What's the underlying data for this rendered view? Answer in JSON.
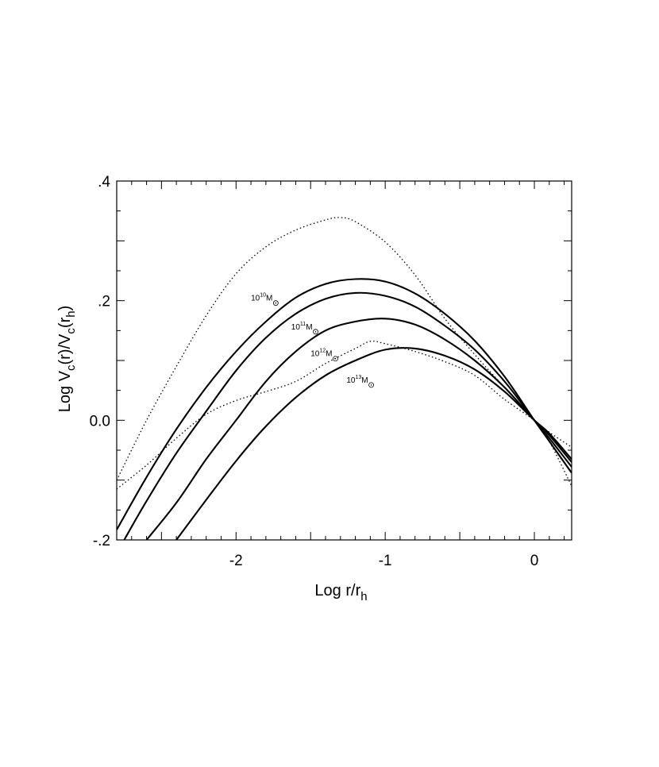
{
  "chart_data": {
    "type": "line",
    "title": "",
    "xlabel": {
      "main": "Log  r/r",
      "sub": "h"
    },
    "ylabel": {
      "parts": [
        {
          "t": "Log  V",
          "sub": false
        },
        {
          "t": "c",
          "sub": true
        },
        {
          "t": "(r)/V",
          "sub": false
        },
        {
          "t": "c",
          "sub": true
        },
        {
          "t": "(r",
          "sub": false
        },
        {
          "t": "h",
          "sub": true
        },
        {
          "t": ")",
          "sub": false
        }
      ]
    },
    "xlim": [
      -2.8,
      0.25
    ],
    "ylim": [
      -0.2,
      0.4
    ],
    "x_ticks": [
      {
        "value": -2,
        "label": "-2"
      },
      {
        "value": -1,
        "label": "-1"
      },
      {
        "value": 0,
        "label": "0"
      }
    ],
    "y_ticks": [
      {
        "value": -0.2,
        "label": "-.2"
      },
      {
        "value": 0.0,
        "label": "0.0"
      },
      {
        "value": 0.2,
        "label": ".2"
      },
      {
        "value": 0.4,
        "label": ".4"
      }
    ],
    "grid": false,
    "legend": "none",
    "series": [
      {
        "style": "solid",
        "x": [
          -2.8,
          -2.6,
          -2.4,
          -2.2,
          -2.0,
          -1.8,
          -1.6,
          -1.4,
          -1.2,
          -1.0,
          -0.8,
          -0.6,
          -0.4,
          -0.2,
          0.0,
          0.1,
          0.25
        ],
        "y": [
          -0.183,
          -0.095,
          -0.015,
          0.055,
          0.115,
          0.165,
          0.205,
          0.228,
          0.236,
          0.232,
          0.212,
          0.178,
          0.133,
          0.073,
          0.0,
          -0.035,
          -0.088
        ]
      },
      {
        "style": "solid",
        "x": [
          -2.75,
          -2.6,
          -2.4,
          -2.2,
          -2.0,
          -1.8,
          -1.6,
          -1.4,
          -1.2,
          -1.0,
          -0.8,
          -0.6,
          -0.4,
          -0.2,
          0.0,
          0.1,
          0.25
        ],
        "y": [
          -0.2,
          -0.135,
          -0.055,
          0.015,
          0.083,
          0.138,
          0.178,
          0.203,
          0.213,
          0.208,
          0.19,
          0.158,
          0.118,
          0.065,
          0.0,
          -0.03,
          -0.078
        ]
      },
      {
        "style": "solid",
        "x": [
          -2.6,
          -2.4,
          -2.2,
          -2.0,
          -1.8,
          -1.6,
          -1.4,
          -1.2,
          -1.0,
          -0.8,
          -0.6,
          -0.4,
          -0.2,
          0.0,
          0.1,
          0.25
        ],
        "y": [
          -0.2,
          -0.138,
          -0.065,
          0.0,
          0.065,
          0.115,
          0.15,
          0.165,
          0.17,
          0.16,
          0.135,
          0.1,
          0.055,
          0.0,
          -0.025,
          -0.07
        ]
      },
      {
        "style": "solid",
        "x": [
          -2.4,
          -2.2,
          -2.0,
          -1.8,
          -1.6,
          -1.4,
          -1.2,
          -1.0,
          -0.8,
          -0.6,
          -0.4,
          -0.2,
          0.0,
          0.1,
          0.25
        ],
        "y": [
          -0.2,
          -0.133,
          -0.068,
          -0.01,
          0.038,
          0.075,
          0.1,
          0.118,
          0.12,
          0.108,
          0.085,
          0.048,
          0.0,
          -0.022,
          -0.065
        ]
      },
      {
        "style": "dotted",
        "x": [
          -2.8,
          -2.6,
          -2.4,
          -2.2,
          -2.0,
          -1.8,
          -1.6,
          -1.4,
          -1.3,
          -1.2,
          -1.0,
          -0.8,
          -0.6,
          -0.4,
          -0.2,
          0.0,
          0.1,
          0.25
        ],
        "y": [
          -0.1,
          0.0,
          0.09,
          0.175,
          0.245,
          0.29,
          0.318,
          0.335,
          0.339,
          0.332,
          0.298,
          0.243,
          0.17,
          0.11,
          0.055,
          0.0,
          -0.035,
          -0.11
        ]
      },
      {
        "style": "dotted",
        "x": [
          -2.8,
          -2.6,
          -2.4,
          -2.2,
          -2.0,
          -1.8,
          -1.6,
          -1.4,
          -1.2,
          -1.1,
          -1.0,
          -0.8,
          -0.6,
          -0.4,
          -0.2,
          0.0,
          0.1,
          0.25
        ],
        "y": [
          -0.115,
          -0.075,
          -0.03,
          0.01,
          0.033,
          0.048,
          0.065,
          0.095,
          0.12,
          0.132,
          0.128,
          0.115,
          0.098,
          0.075,
          0.035,
          0.0,
          -0.02,
          -0.045
        ]
      }
    ],
    "annotations": [
      {
        "base": "10",
        "exp": "10",
        "unit": "M",
        "x": -1.9,
        "y": 0.2
      },
      {
        "base": "10",
        "exp": "11",
        "unit": "M",
        "x": -1.63,
        "y": 0.152
      },
      {
        "base": "10",
        "exp": "12",
        "unit": "M",
        "x": -1.5,
        "y": 0.107
      },
      {
        "base": "10",
        "exp": "13",
        "unit": "M",
        "x": -1.26,
        "y": 0.063
      }
    ]
  }
}
